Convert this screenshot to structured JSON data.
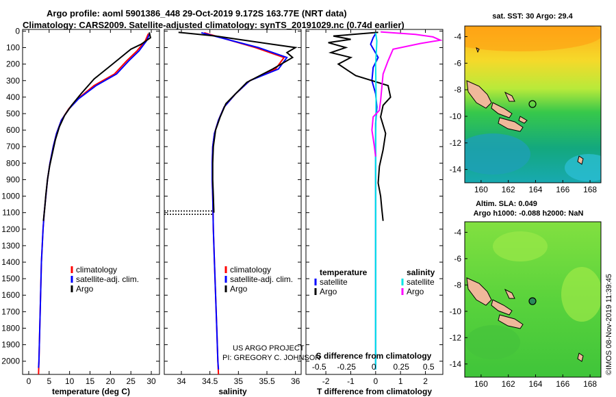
{
  "header": {
    "line1": "Argo profile: aoml 5901386_448 29-Oct-2019 9.172S 163.77E (NRT data)",
    "line2": "Climatology: CARS2009. Satellite-adjusted climatology: synTS_20191029.nc (0.74d earlier)"
  },
  "depth_ticks": [
    "0",
    "100",
    "200",
    "300",
    "400",
    "500",
    "600",
    "700",
    "800",
    "900",
    "1000",
    "1100",
    "1200",
    "1300",
    "1400",
    "1500",
    "1600",
    "1700",
    "1800",
    "1900",
    "2000"
  ],
  "colors": {
    "climatology": "#ff0000",
    "satellite": "#0000ff",
    "argo": "#000000",
    "sat_salinity": "#00e5e5",
    "argo_salinity": "#ff00ff",
    "land": "#f0b89a"
  },
  "chart_data": [
    {
      "type": "line",
      "id": "temperature",
      "xlabel": "temperature (deg C)",
      "xlim": [
        -1.5,
        32
      ],
      "ylim": [
        2080,
        -10
      ],
      "xticks": [
        "0",
        "5",
        "10",
        "15",
        "20",
        "25",
        "30"
      ],
      "legend": [
        "climatology",
        "satellite-adj. clim.",
        "Argo"
      ],
      "series": [
        {
          "name": "climatology",
          "color": "#ff0000",
          "points": [
            [
              29.3,
              15
            ],
            [
              28.5,
              60
            ],
            [
              26.5,
              120
            ],
            [
              24,
              180
            ],
            [
              21,
              260
            ],
            [
              16,
              330
            ],
            [
              12,
              410
            ],
            [
              9.8,
              470
            ],
            [
              8,
              540
            ],
            [
              6.8,
              620
            ],
            [
              6,
              700
            ],
            [
              5.2,
              800
            ],
            [
              4.6,
              900
            ],
            [
              4.2,
              1000
            ],
            [
              3.8,
              1100
            ],
            [
              3.5,
              1200
            ],
            [
              3.3,
              1300
            ],
            [
              3.1,
              1400
            ],
            [
              3,
              1500
            ],
            [
              2.9,
              1600
            ],
            [
              2.8,
              1700
            ],
            [
              2.7,
              1800
            ],
            [
              2.6,
              1900
            ],
            [
              2.5,
              2000
            ],
            [
              2.4,
              2080
            ]
          ]
        },
        {
          "name": "satellite-adj. clim.",
          "color": "#0000ff",
          "points": [
            [
              29.6,
              15
            ],
            [
              28.8,
              60
            ],
            [
              27,
              120
            ],
            [
              24.5,
              180
            ],
            [
              21.5,
              260
            ],
            [
              16.5,
              330
            ],
            [
              12.2,
              410
            ],
            [
              9.9,
              470
            ],
            [
              8,
              540
            ],
            [
              6.8,
              620
            ],
            [
              6,
              700
            ],
            [
              5.2,
              800
            ],
            [
              4.6,
              900
            ],
            [
              4.2,
              1000
            ],
            [
              3.8,
              1100
            ],
            [
              3.5,
              1200
            ],
            [
              3.3,
              1300
            ],
            [
              3.1,
              1400
            ],
            [
              3,
              1500
            ],
            [
              2.9,
              1600
            ],
            [
              2.8,
              1700
            ],
            [
              2.7,
              1800
            ],
            [
              2.6,
              1900
            ],
            [
              2.5,
              2000
            ],
            [
              2.4,
              2040
            ]
          ]
        },
        {
          "name": "Argo",
          "color": "#000000",
          "points": [
            [
              29.5,
              8
            ],
            [
              29.8,
              40
            ],
            [
              27.5,
              80
            ],
            [
              25,
              110
            ],
            [
              22.5,
              160
            ],
            [
              20,
              210
            ],
            [
              16,
              290
            ],
            [
              12.8,
              380
            ],
            [
              10.5,
              450
            ],
            [
              8.8,
              510
            ],
            [
              7.5,
              580
            ],
            [
              6.5,
              660
            ],
            [
              5.8,
              740
            ],
            [
              5.1,
              820
            ],
            [
              4.6,
              900
            ],
            [
              4.2,
              990
            ],
            [
              3.9,
              1080
            ],
            [
              3.6,
              1150
            ]
          ]
        }
      ]
    },
    {
      "type": "line",
      "id": "salinity",
      "xlabel": "salinity",
      "xlim": [
        33.7,
        36.1
      ],
      "ylim": [
        2080,
        -10
      ],
      "xticks": [
        "34",
        "34.5",
        "35",
        "35.5",
        "36"
      ],
      "legend": [
        "climatology",
        "satellite-adj. clim.",
        "Argo"
      ],
      "annotation": [
        "US ARGO PROJECT",
        "PI: GREGORY C. JOHNSON"
      ],
      "series": [
        {
          "name": "climatology",
          "color": "#ff0000",
          "points": [
            [
              34.4,
              10
            ],
            [
              34.8,
              50
            ],
            [
              35.3,
              100
            ],
            [
              35.8,
              160
            ],
            [
              35.65,
              230
            ],
            [
              35.2,
              300
            ],
            [
              34.95,
              380
            ],
            [
              34.75,
              460
            ],
            [
              34.65,
              540
            ],
            [
              34.58,
              620
            ],
            [
              34.55,
              700
            ],
            [
              34.54,
              800
            ],
            [
              34.54,
              900
            ],
            [
              34.55,
              1000
            ],
            [
              34.56,
              1200
            ],
            [
              34.58,
              1400
            ],
            [
              34.6,
              1600
            ],
            [
              34.62,
              1800
            ],
            [
              34.64,
              2000
            ],
            [
              34.65,
              2080
            ]
          ]
        },
        {
          "name": "satellite-adj. clim.",
          "color": "#0000ff",
          "points": [
            [
              34.35,
              10
            ],
            [
              34.8,
              50
            ],
            [
              35.35,
              100
            ],
            [
              35.85,
              160
            ],
            [
              35.7,
              230
            ],
            [
              35.2,
              300
            ],
            [
              34.95,
              380
            ],
            [
              34.75,
              460
            ],
            [
              34.65,
              540
            ],
            [
              34.58,
              620
            ],
            [
              34.55,
              700
            ],
            [
              34.54,
              800
            ],
            [
              34.54,
              900
            ],
            [
              34.55,
              1000
            ],
            [
              34.56,
              1200
            ],
            [
              34.58,
              1400
            ],
            [
              34.6,
              1600
            ],
            [
              34.62,
              1800
            ],
            [
              34.64,
              2000
            ],
            [
              34.65,
              2050
            ]
          ]
        },
        {
          "name": "Argo",
          "color": "#000000",
          "points": [
            [
              33.95,
              8
            ],
            [
              34.6,
              30
            ],
            [
              35.1,
              55
            ],
            [
              35.6,
              80
            ],
            [
              36.0,
              100
            ],
            [
              35.85,
              130
            ],
            [
              35.95,
              160
            ],
            [
              35.6,
              230
            ],
            [
              35.15,
              310
            ],
            [
              34.95,
              380
            ],
            [
              34.78,
              440
            ],
            [
              34.68,
              520
            ],
            [
              34.6,
              600
            ],
            [
              34.56,
              700
            ],
            [
              34.55,
              800
            ],
            [
              34.55,
              900
            ],
            [
              34.56,
              1000
            ],
            [
              34.57,
              1100
            ]
          ]
        },
        {
          "name": "",
          "color": "#000000",
          "dashed": true,
          "points": [
            [
              33.7,
              1090
            ],
            [
              34.55,
              1090
            ]
          ]
        },
        {
          "name": "",
          "color": "#000000",
          "dashed": true,
          "points": [
            [
              33.7,
              1110
            ],
            [
              34.55,
              1110
            ]
          ]
        }
      ]
    },
    {
      "type": "line",
      "id": "difference",
      "xlabel": "T difference from climatology",
      "top_xlabel": "S difference from climatology",
      "xlim": [
        -2.8,
        2.7
      ],
      "ylim": [
        2080,
        -10
      ],
      "xticks": [
        "-2",
        "-1",
        "0",
        "1",
        "2"
      ],
      "top_xticks": [
        "-0.5",
        "-0.25",
        "0",
        "0.25",
        "0.5"
      ],
      "legend_left": {
        "title": "temperature",
        "items": [
          "satellite",
          "Argo"
        ]
      },
      "legend_right": {
        "title": "salinity",
        "items": [
          "satellite",
          "Argo"
        ]
      },
      "series": [
        {
          "name": "temperature satellite",
          "color": "#0000ff",
          "points": [
            [
              0,
              15
            ],
            [
              -0.1,
              40
            ],
            [
              -0.2,
              80
            ],
            [
              -0.05,
              120
            ],
            [
              0.1,
              160
            ],
            [
              -0.1,
              220
            ],
            [
              -0.15,
              300
            ],
            [
              0,
              380
            ],
            [
              0.05,
              460
            ],
            [
              0,
              560
            ],
            [
              0,
              1100
            ],
            [
              0,
              2050
            ]
          ]
        },
        {
          "name": "temperature Argo",
          "color": "#000000",
          "points": [
            [
              0.1,
              8
            ],
            [
              -1.7,
              30
            ],
            [
              -1.0,
              50
            ],
            [
              -1.9,
              70
            ],
            [
              -1.2,
              100
            ],
            [
              -1.8,
              130
            ],
            [
              -1.0,
              160
            ],
            [
              -1.5,
              200
            ],
            [
              -1.1,
              240
            ],
            [
              -0.8,
              270
            ],
            [
              0.5,
              330
            ],
            [
              0.6,
              400
            ],
            [
              0.3,
              450
            ],
            [
              0.2,
              520
            ],
            [
              0.4,
              620
            ],
            [
              0.3,
              720
            ],
            [
              0.15,
              820
            ],
            [
              0.1,
              920
            ],
            [
              0.2,
              1000
            ],
            [
              0.25,
              1080
            ],
            [
              0.3,
              1150
            ]
          ]
        },
        {
          "name": "salinity satellite",
          "color": "#00e5e5",
          "points": [
            [
              0,
              10
            ],
            [
              0.05,
              60
            ],
            [
              0.03,
              120
            ],
            [
              0,
              200
            ],
            [
              0.02,
              400
            ],
            [
              0,
              700
            ],
            [
              0,
              1200
            ],
            [
              0,
              2050
            ]
          ]
        },
        {
          "name": "salinity Argo",
          "color": "#ff00ff",
          "points": [
            [
              0.2,
              5
            ],
            [
              1.6,
              20
            ],
            [
              2.3,
              35
            ],
            [
              2.6,
              55
            ],
            [
              1.8,
              75
            ],
            [
              0.7,
              110
            ],
            [
              0.5,
              180
            ],
            [
              0.3,
              260
            ],
            [
              0.25,
              340
            ],
            [
              0.2,
              420
            ],
            [
              0.15,
              480
            ],
            [
              -0.1,
              520
            ],
            [
              -0.15,
              600
            ],
            [
              -0.05,
              700
            ],
            [
              0,
              760
            ]
          ]
        }
      ]
    },
    {
      "type": "heatmap",
      "id": "sst_map",
      "title": "sat. SST: 30 Argo: 29.4",
      "xlim": [
        158.8,
        168.8
      ],
      "ylim": [
        -15,
        -3.2
      ],
      "xticks": [
        "160",
        "162",
        "164",
        "166",
        "168"
      ],
      "yticks": [
        "-4",
        "-6",
        "-8",
        "-10",
        "-12",
        "-14"
      ],
      "float_position": [
        163.77,
        -9.172
      ]
    },
    {
      "type": "heatmap",
      "id": "sla_map",
      "title_lines": [
        "Altim. SLA: 0.049",
        "Argo h1000: -0.088 h2000: NaN"
      ],
      "xlim": [
        158.8,
        168.8
      ],
      "ylim": [
        -15,
        -3.2
      ],
      "xticks": [
        "160",
        "162",
        "164",
        "166",
        "168"
      ],
      "yticks": [
        "-4",
        "-6",
        "-8",
        "-10",
        "-12",
        "-14"
      ],
      "float_position": [
        163.77,
        -9.172
      ]
    }
  ],
  "footer": {
    "imos_stamp": "©IMOS 08-Nov-2019 11:39:45"
  }
}
